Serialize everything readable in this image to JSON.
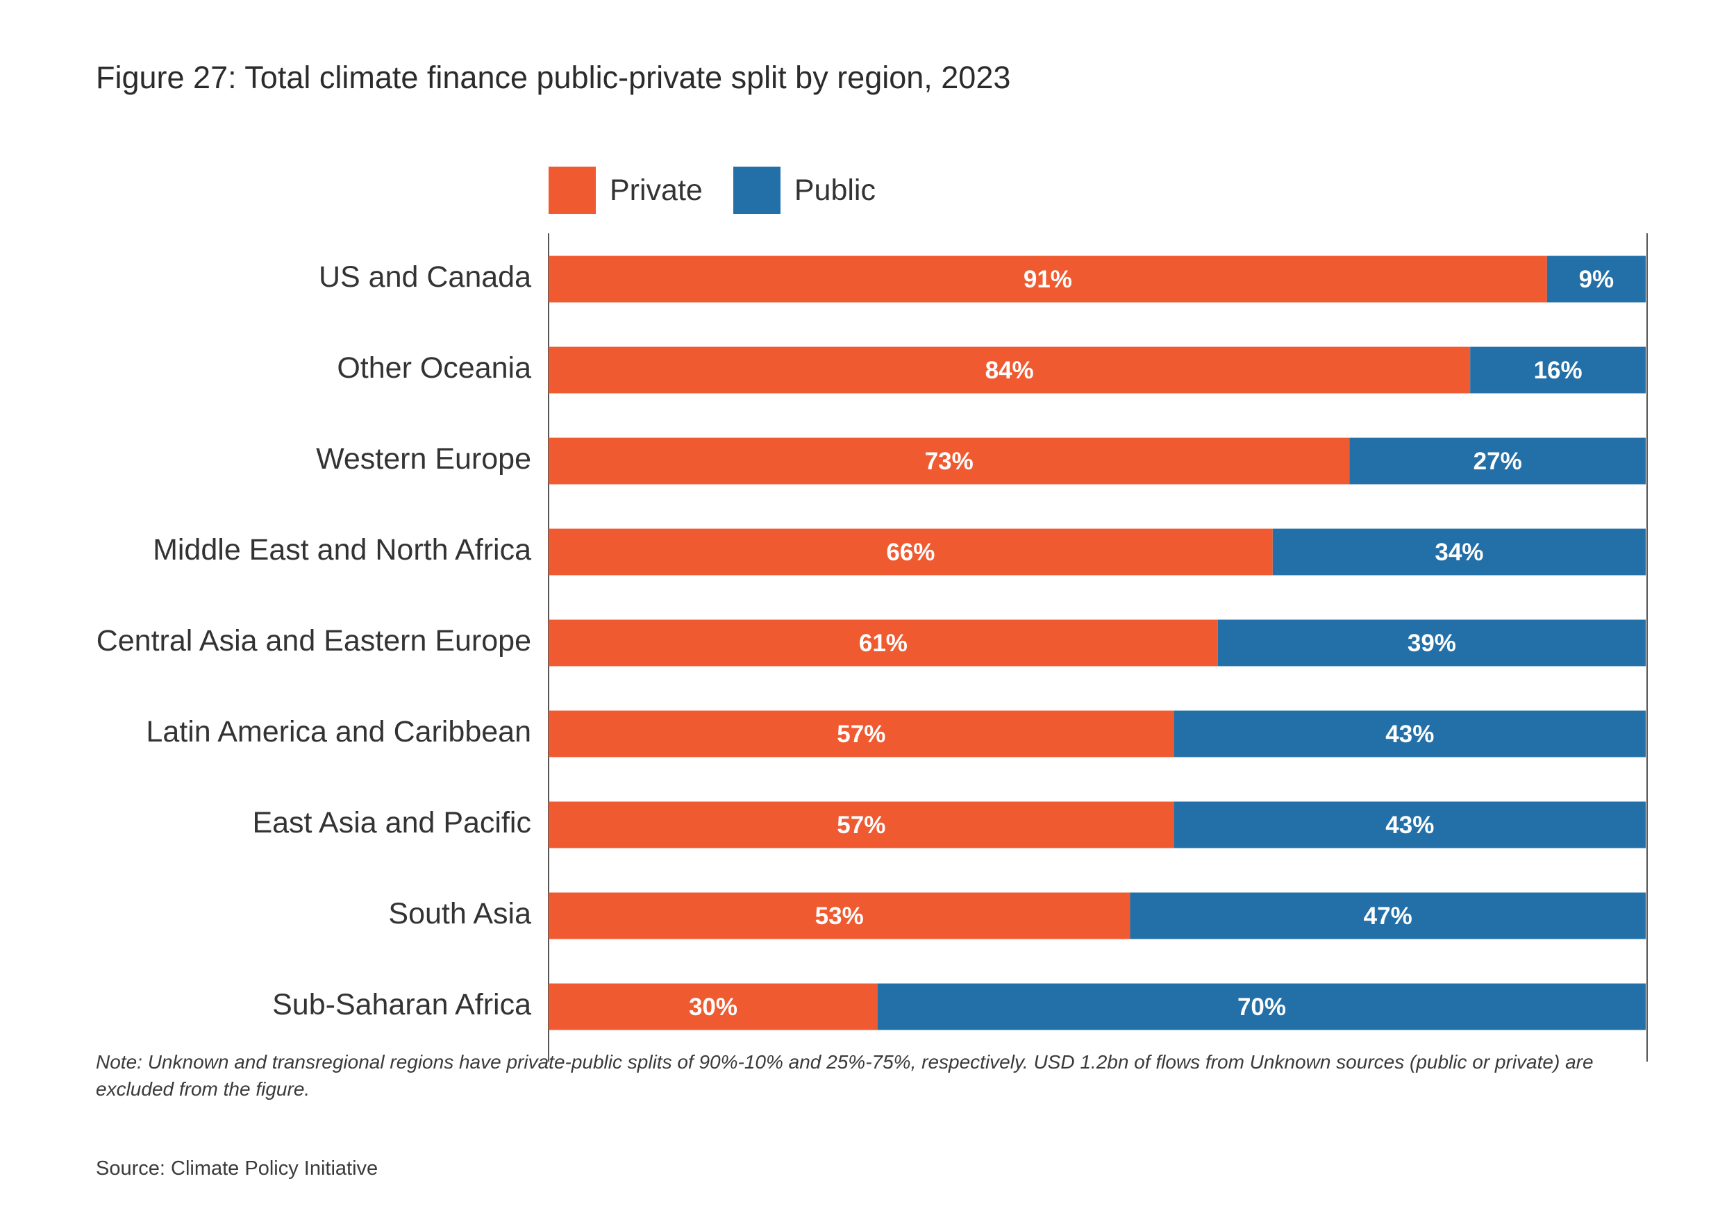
{
  "figure": {
    "title": "Figure 27: Total climate finance public-private split by region, 2023",
    "note": "Note: Unknown and transregional regions have private-public splits of 90%-10% and 25%-75%, respectively. USD 1.2bn of flows from Unknown sources (public or private) are excluded from the figure.",
    "source": "Source: Climate Policy Initiative"
  },
  "legend": {
    "items": [
      {
        "label": "Private",
        "color": "#F05A30"
      },
      {
        "label": "Public",
        "color": "#2370A8"
      }
    ]
  },
  "chart_data": {
    "type": "bar",
    "orientation": "horizontal",
    "stacked": true,
    "normalized": true,
    "title": "Figure 27: Total climate finance public-private split by region, 2023",
    "xlabel": "",
    "ylabel": "",
    "xlim": [
      0,
      100
    ],
    "grid": false,
    "legend_position": "top",
    "categories": [
      "US and Canada",
      "Other Oceania",
      "Western Europe",
      "Middle East and North Africa",
      "Central Asia and Eastern Europe",
      "Latin America and Caribbean",
      "East Asia and Pacific",
      "South Asia",
      "Sub-Saharan Africa"
    ],
    "series": [
      {
        "name": "Private",
        "color": "#F05A30",
        "values": [
          91,
          84,
          73,
          66,
          61,
          57,
          57,
          53,
          30
        ],
        "labels": [
          "91%",
          "84%",
          "73%",
          "66%",
          "61%",
          "57%",
          "57%",
          "53%",
          "30%"
        ]
      },
      {
        "name": "Public",
        "color": "#2370A8",
        "values": [
          9,
          16,
          27,
          34,
          39,
          43,
          43,
          47,
          70
        ],
        "labels": [
          "9%",
          "16%",
          "27%",
          "34%",
          "39%",
          "43%",
          "43%",
          "47%",
          "70%"
        ]
      }
    ]
  }
}
